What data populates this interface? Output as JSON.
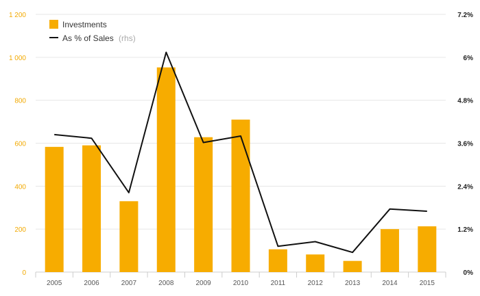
{
  "chart_data": {
    "type": "bar",
    "categories": [
      "2005",
      "2006",
      "2007",
      "2008",
      "2009",
      "2010",
      "2011",
      "2012",
      "2013",
      "2014",
      "2015"
    ],
    "series": [
      {
        "name": "Investments",
        "type": "bar",
        "axis": "left",
        "values": [
          583,
          590,
          330,
          953,
          628,
          710,
          106,
          82,
          52,
          200,
          213
        ]
      },
      {
        "name": "As % of Sales",
        "type": "line",
        "axis": "right",
        "values": [
          3.84,
          3.74,
          2.22,
          6.14,
          3.62,
          3.8,
          0.72,
          0.85,
          0.55,
          1.76,
          1.7
        ]
      }
    ],
    "legend": {
      "bar_label": "Investments",
      "line_label": "As % of Sales",
      "line_note": "(rhs)",
      "placement": "top-left"
    },
    "y_left": {
      "min": 0,
      "max": 1200,
      "ticks": [
        "0",
        "200",
        "400",
        "600",
        "800",
        "1 000",
        "1 200"
      ]
    },
    "y_right": {
      "min": 0,
      "max": 7.2,
      "ticks": [
        "0%",
        "1.2%",
        "2.4%",
        "3.6%",
        "4.8%",
        "6%",
        "7.2%"
      ]
    },
    "colors": {
      "bar": "#f7ac00",
      "line": "#111111",
      "grid": "#e6e6e6",
      "left_ticks": "#f2a900"
    },
    "grid": true
  }
}
